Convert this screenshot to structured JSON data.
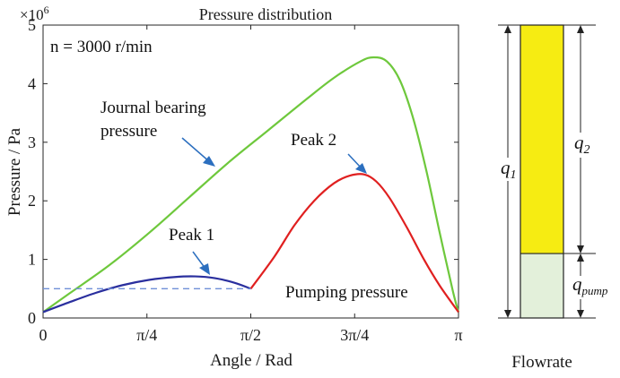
{
  "chart_data": [
    {
      "type": "line",
      "title": "Pressure distribution",
      "xlabel": "Angle / Rad",
      "ylabel": "Pressure / Pa",
      "y_multiplier": "×10",
      "y_exponent": "6",
      "xlim": [
        0,
        3.14159
      ],
      "ylim": [
        0,
        5
      ],
      "x_ticks": [
        {
          "value": 0,
          "label": "0"
        },
        {
          "value": 0.7854,
          "label": "π/4"
        },
        {
          "value": 1.5708,
          "label": "π/2"
        },
        {
          "value": 2.3562,
          "label": "3π/4"
        },
        {
          "value": 3.14159,
          "label": "π"
        }
      ],
      "y_ticks": [
        {
          "value": 0,
          "label": "0"
        },
        {
          "value": 1,
          "label": "1"
        },
        {
          "value": 2,
          "label": "2"
        },
        {
          "value": 3,
          "label": "3"
        },
        {
          "value": 4,
          "label": "4"
        },
        {
          "value": 5,
          "label": "5"
        }
      ],
      "series": [
        {
          "name": "Journal bearing pressure",
          "color": "#6ec83c",
          "style": "solid",
          "x": [
            0,
            0.2,
            0.5,
            0.8,
            1.1,
            1.4,
            1.7,
            2.0,
            2.2,
            2.4,
            2.5,
            2.6,
            2.7,
            2.8,
            2.9,
            3.0,
            3.1,
            3.14159
          ],
          "y": [
            0.1,
            0.42,
            0.9,
            1.45,
            2.05,
            2.65,
            3.2,
            3.75,
            4.1,
            4.38,
            4.45,
            4.38,
            4.05,
            3.4,
            2.5,
            1.45,
            0.45,
            0.1
          ]
        },
        {
          "name": "Peak 1",
          "color": "#2a2f9e",
          "style": "solid",
          "x": [
            0,
            0.2,
            0.4,
            0.6,
            0.8,
            1.0,
            1.15,
            1.3,
            1.45,
            1.5708
          ],
          "y": [
            0.1,
            0.27,
            0.43,
            0.56,
            0.65,
            0.7,
            0.71,
            0.68,
            0.6,
            0.5
          ]
        },
        {
          "name": "Peak 2",
          "color": "#e02020",
          "style": "solid",
          "x": [
            1.5708,
            1.75,
            1.9,
            2.05,
            2.2,
            2.32,
            2.43,
            2.52,
            2.62,
            2.75,
            2.88,
            3.0,
            3.14159
          ],
          "y": [
            0.5,
            1.05,
            1.58,
            2.0,
            2.3,
            2.43,
            2.45,
            2.33,
            2.05,
            1.55,
            1.0,
            0.55,
            0.1
          ]
        },
        {
          "name": "Pumping pressure",
          "color": "#6f8fd8",
          "style": "dashed",
          "x": [
            0,
            1.5708
          ],
          "y": [
            0.5,
            0.5
          ]
        }
      ],
      "annotations": [
        {
          "text": "n = 3000 r/min"
        },
        {
          "line1": "Journal bearing",
          "line2": "pressure"
        },
        {
          "text": "Peak 1"
        },
        {
          "text": "Peak 2"
        },
        {
          "text": "Pumping pressure"
        }
      ]
    },
    {
      "type": "bar",
      "title": "Flowrate",
      "segments": [
        {
          "name": "q_pump",
          "fraction": 0.22,
          "color": "#e3f0da"
        },
        {
          "name": "q_2",
          "fraction": 0.78,
          "color": "#f6ec12"
        }
      ],
      "labels": {
        "q1": "q",
        "q1_sub": "1",
        "q2": "q",
        "q2_sub": "2",
        "qpump": "q",
        "qpump_sub": "pump"
      }
    }
  ]
}
